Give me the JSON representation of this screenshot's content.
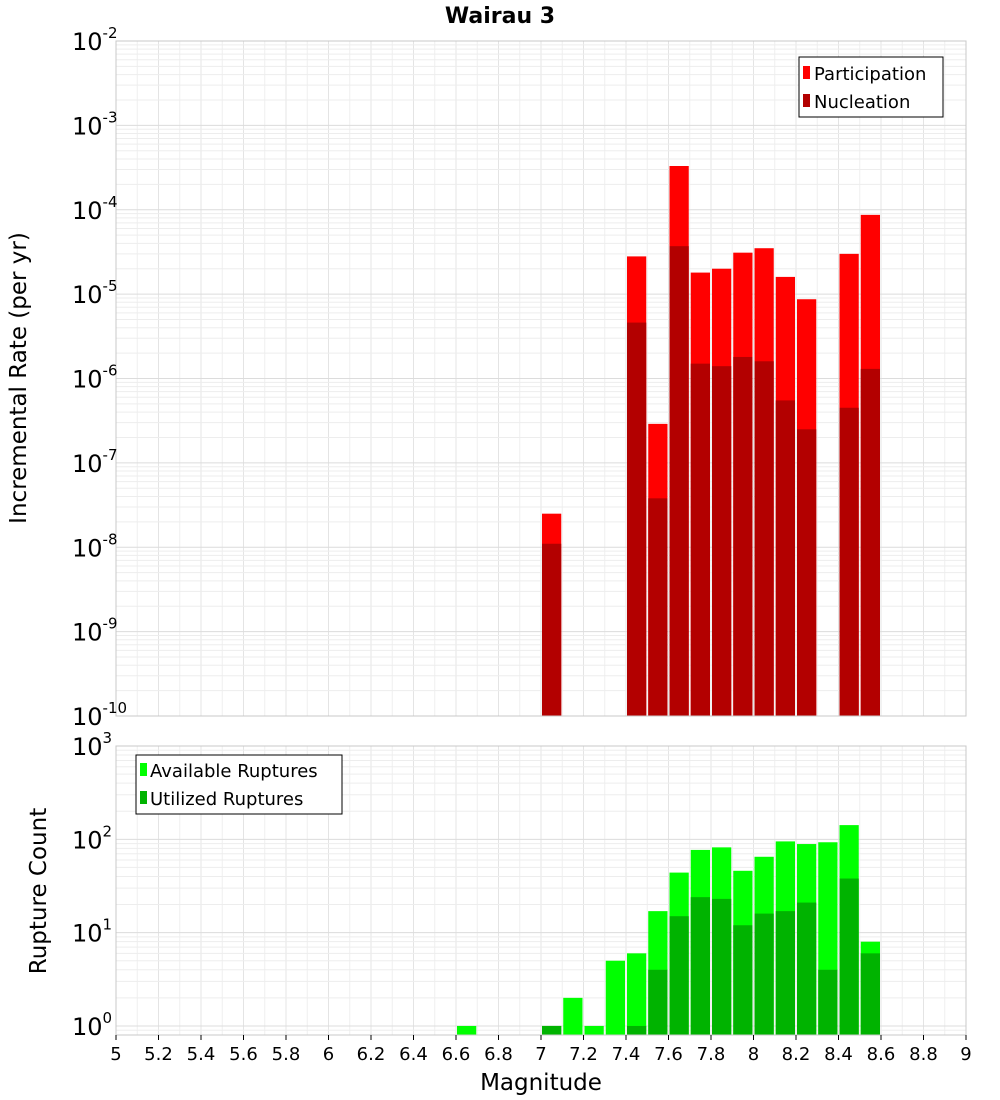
{
  "chart_data": [
    {
      "type": "bar",
      "title": "Wairau 3",
      "xlabel": "Magnitude",
      "ylabel": "Incremental Rate (per yr)",
      "xlim": [
        5,
        9
      ],
      "ylim": [
        1e-10,
        0.01
      ],
      "yscale": "log",
      "grid": true,
      "legend_position": "top-right",
      "series": [
        {
          "name": "Participation",
          "color": "#ff0000",
          "x": [
            7.05,
            7.45,
            7.55,
            7.65,
            7.75,
            7.85,
            7.95,
            8.05,
            8.15,
            8.25,
            8.45,
            8.55
          ],
          "values": [
            2.5e-08,
            2.8e-05,
            2.9e-07,
            0.00033,
            1.8e-05,
            2e-05,
            3.1e-05,
            3.5e-05,
            1.6e-05,
            8.7e-06,
            3e-05,
            8.7e-05
          ]
        },
        {
          "name": "Nucleation",
          "color": "#b30000",
          "x": [
            7.05,
            7.45,
            7.55,
            7.65,
            7.75,
            7.85,
            7.95,
            8.05,
            8.15,
            8.25,
            8.45,
            8.55
          ],
          "values": [
            1.1e-08,
            4.6e-06,
            3.8e-08,
            3.7e-05,
            1.5e-06,
            1.4e-06,
            1.8e-06,
            1.6e-06,
            5.5e-07,
            2.5e-07,
            4.5e-07,
            1.3e-06
          ]
        }
      ]
    },
    {
      "type": "bar",
      "title": "",
      "xlabel": "Magnitude",
      "ylabel": "Rupture Count",
      "xlim": [
        5,
        9
      ],
      "ylim": [
        0.8,
        1000
      ],
      "yscale": "log",
      "grid": true,
      "legend_position": "top-left",
      "x_ticks": [
        "5",
        "5.2",
        "5.4",
        "5.6",
        "5.8",
        "6",
        "6.2",
        "6.4",
        "6.6",
        "6.8",
        "7",
        "7.2",
        "7.4",
        "7.6",
        "7.8",
        "8",
        "8.2",
        "8.4",
        "8.6",
        "8.8",
        "9"
      ],
      "series": [
        {
          "name": "Available Ruptures",
          "color": "#00ff00",
          "x": [
            6.65,
            7.05,
            7.15,
            7.25,
            7.35,
            7.45,
            7.55,
            7.65,
            7.75,
            7.85,
            7.95,
            8.05,
            8.15,
            8.25,
            8.35,
            8.45,
            8.55
          ],
          "values": [
            1,
            1,
            2,
            1,
            5,
            6,
            17,
            44,
            77,
            82,
            46,
            65,
            95,
            89,
            93,
            142,
            8
          ]
        },
        {
          "name": "Utilized Ruptures",
          "color": "#00b300",
          "x": [
            7.05,
            7.45,
            7.55,
            7.65,
            7.75,
            7.85,
            7.95,
            8.05,
            8.15,
            8.25,
            8.35,
            8.45,
            8.55
          ],
          "values": [
            1,
            1,
            4,
            15,
            24,
            23,
            12,
            16,
            17,
            21,
            4,
            38,
            6
          ]
        }
      ]
    }
  ]
}
